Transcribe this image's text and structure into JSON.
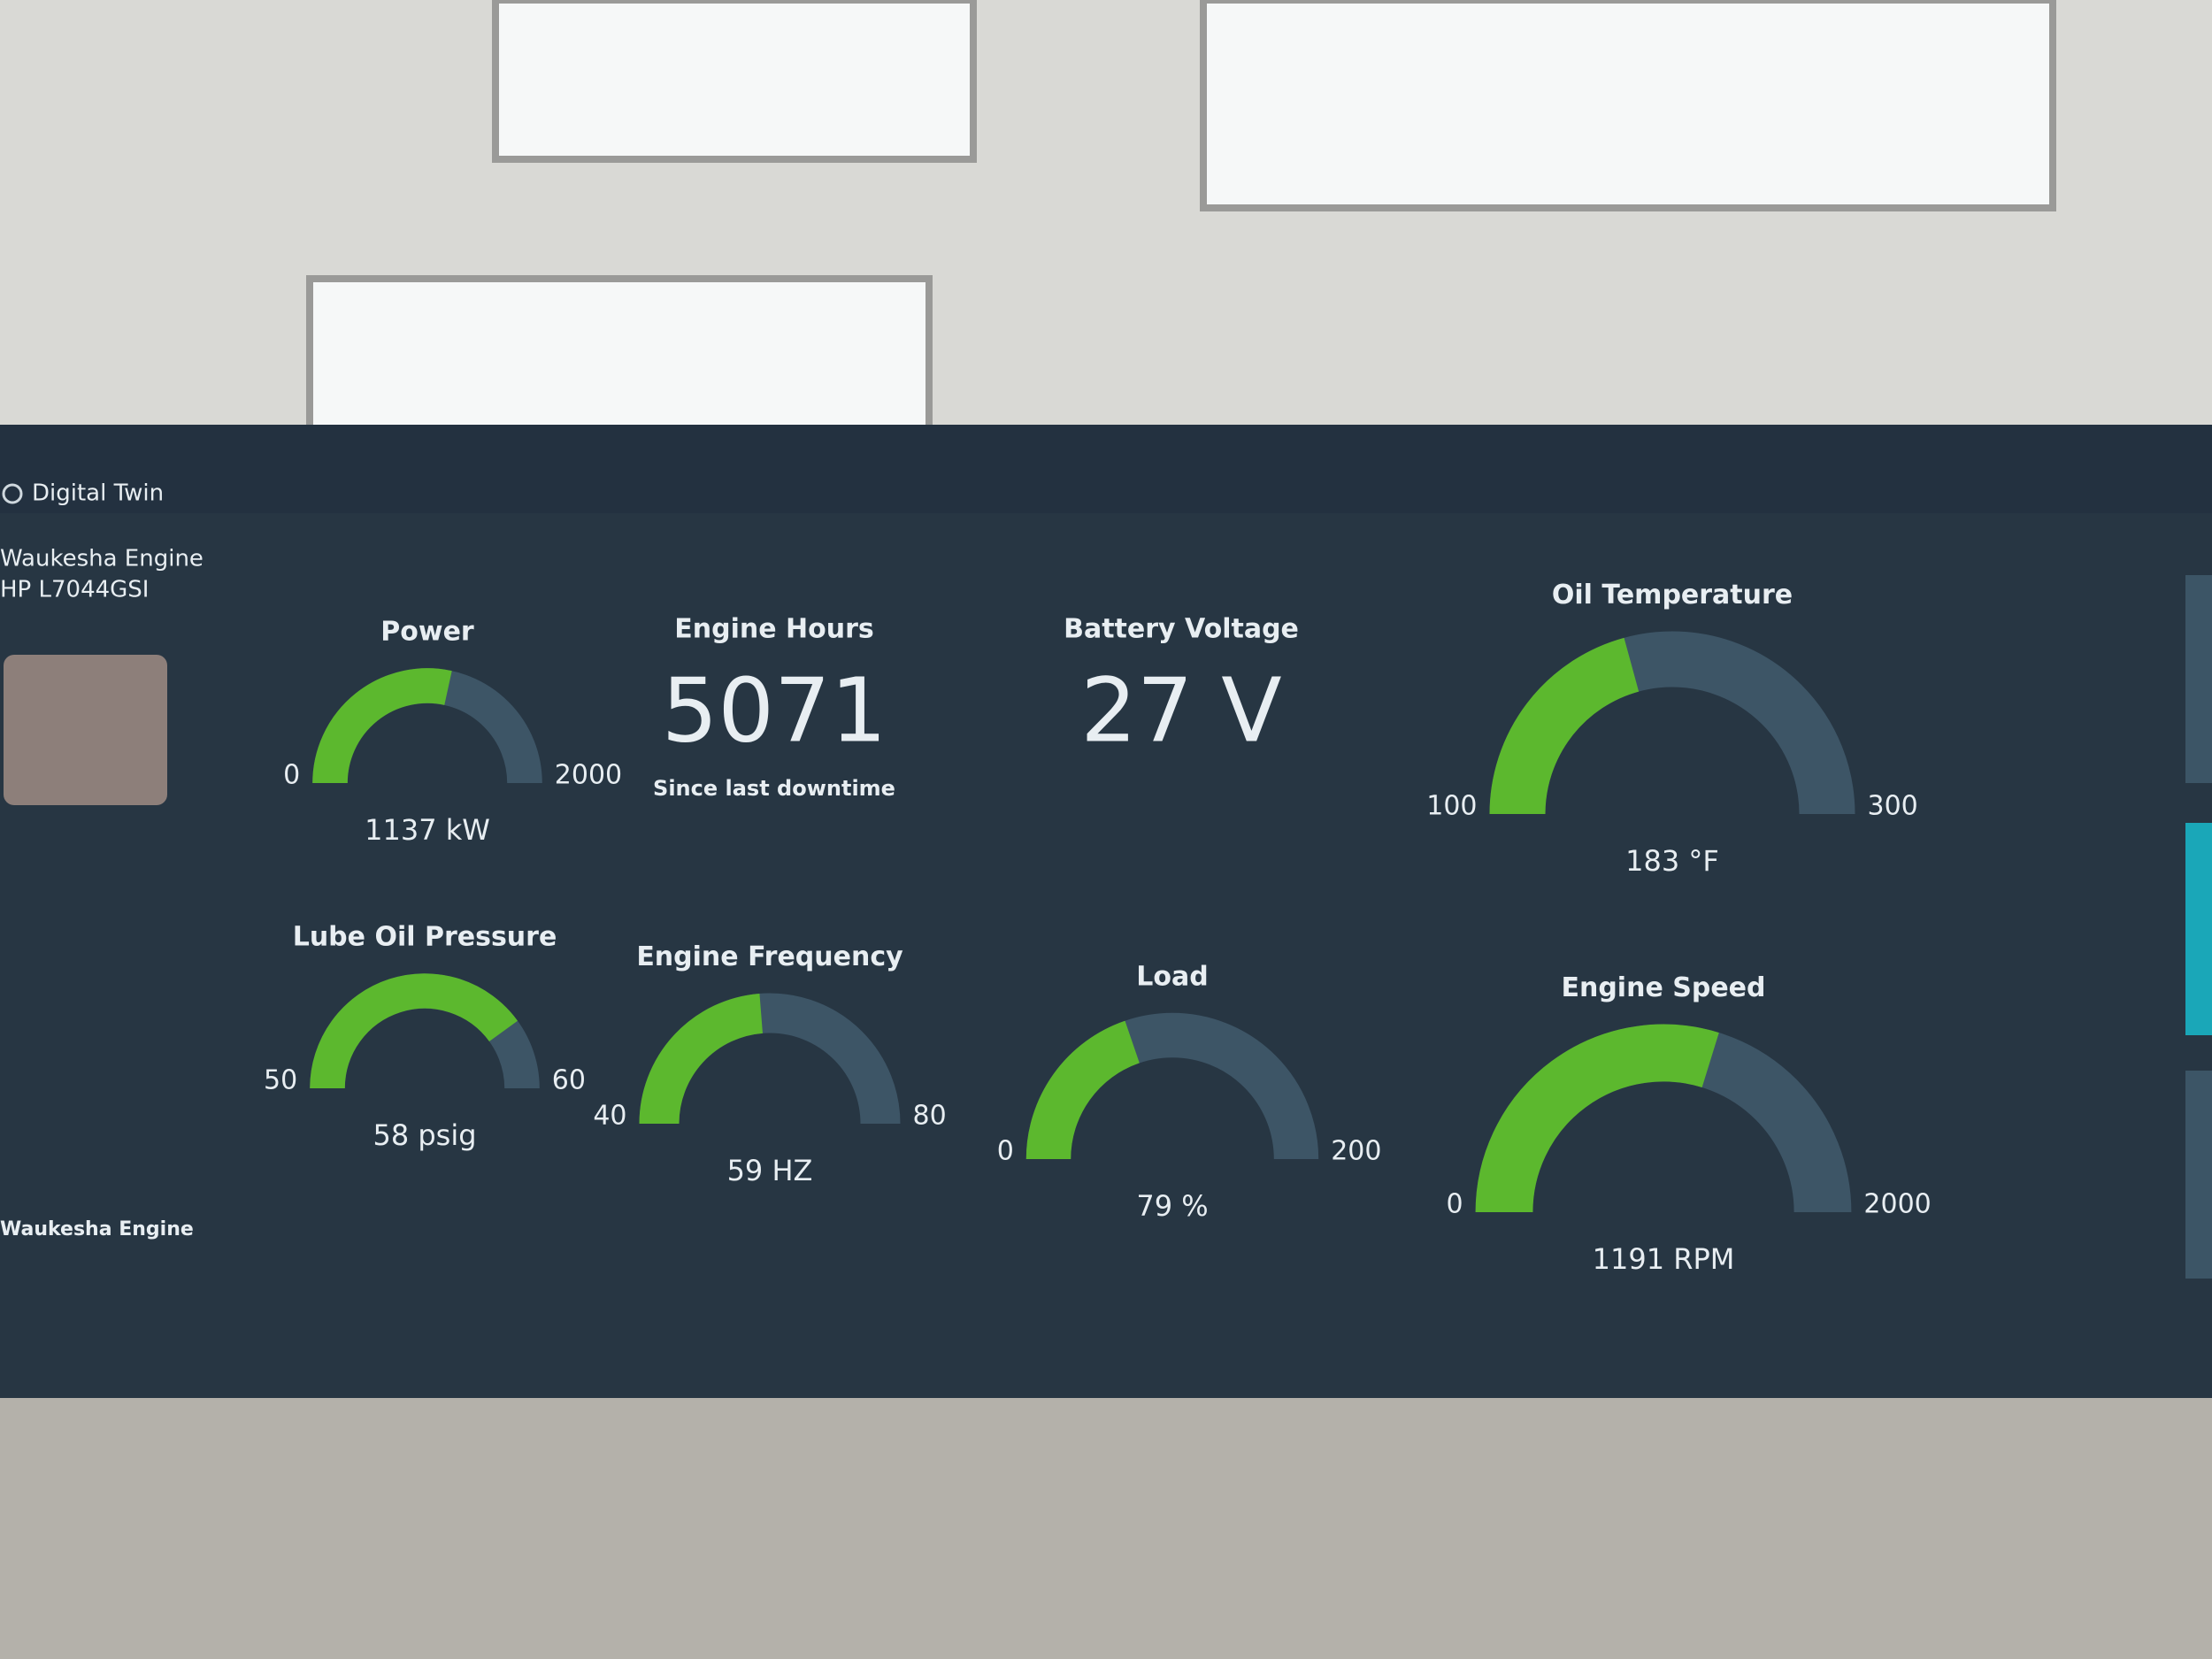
{
  "header": {
    "app_title": "Digital Twin"
  },
  "asset": {
    "name": "Waukesha Engine",
    "model": "HP L7044GSI"
  },
  "footer": {
    "label": "Waukesha Engine"
  },
  "stats": [
    {
      "title": "Engine Hours",
      "value": "5071",
      "caption": "Since last downtime"
    },
    {
      "title": "Battery Voltage",
      "value": "27 V"
    }
  ],
  "gauges": [
    {
      "title": "Power",
      "min": 0,
      "max": 2000,
      "value": 1137,
      "value_label": "1137 kW"
    },
    {
      "title": "Oil Temperature",
      "min": 100,
      "max": 300,
      "value": 183,
      "value_label": "183 °F"
    },
    {
      "title": "Lube Oil Pressure",
      "min": 50,
      "max": 60,
      "value": 58,
      "value_label": "58 psig"
    },
    {
      "title": "Engine Frequency",
      "min": 40,
      "max": 80,
      "value": 59,
      "value_label": "59 HZ"
    },
    {
      "title": "Load",
      "min": 0,
      "max": 200,
      "value": 79,
      "value_label": "79 %"
    },
    {
      "title": "Engine Speed",
      "min": 0,
      "max": 2000,
      "value": 1191,
      "value_label": "1191 RPM"
    }
  ]
}
